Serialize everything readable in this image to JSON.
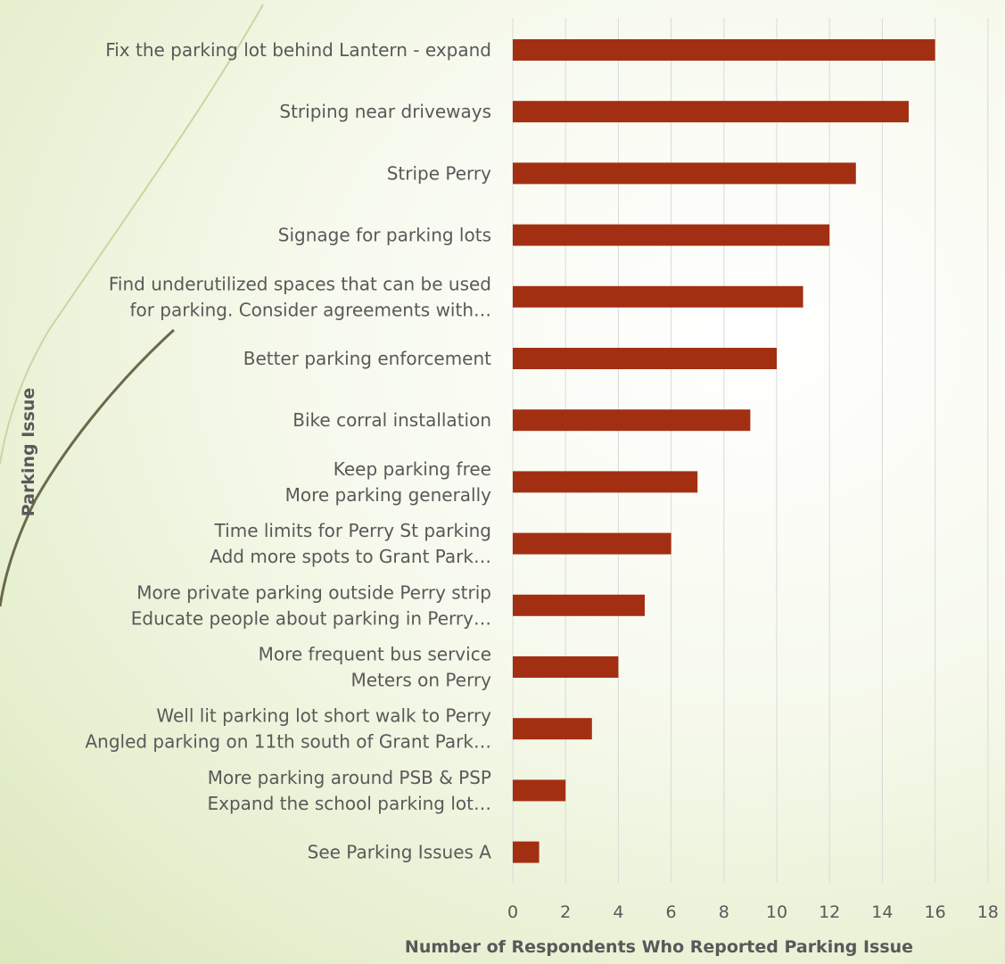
{
  "chart_data": {
    "type": "bar",
    "orientation": "horizontal",
    "title": "",
    "xlabel": "Number of Respondents Who Reported Parking Issue",
    "ylabel": "Parking Issue",
    "xlim": [
      0,
      18
    ],
    "xticks": [
      0,
      2,
      4,
      6,
      8,
      10,
      12,
      14,
      16,
      18
    ],
    "grid": true,
    "bar_color": "#a32f12",
    "categories": [
      [
        "Fix the parking lot behind Lantern - expand"
      ],
      [
        "Striping near driveways"
      ],
      [
        "Stripe Perry"
      ],
      [
        "Signage for parking lots"
      ],
      [
        "Find underutilized spaces that can be used",
        "for parking. Consider agreements with…"
      ],
      [
        "Better parking enforcement"
      ],
      [
        "Bike corral installation"
      ],
      [
        "Keep parking free",
        "More parking generally"
      ],
      [
        "Time limits for Perry St parking",
        "Add more spots to Grant Park…"
      ],
      [
        "More private parking outside Perry strip",
        "Educate people about parking in Perry…"
      ],
      [
        "More frequent bus service",
        "Meters on Perry"
      ],
      [
        "Well lit parking lot short walk to Perry",
        "Angled parking on 11th south of Grant Park…"
      ],
      [
        "More parking around PSB & PSP",
        "Expand the school parking lot…"
      ],
      [
        "See Parking Issues A"
      ]
    ],
    "values": [
      16,
      15,
      13,
      12,
      11,
      10,
      9,
      7,
      6,
      5,
      4,
      3,
      2,
      1
    ]
  }
}
